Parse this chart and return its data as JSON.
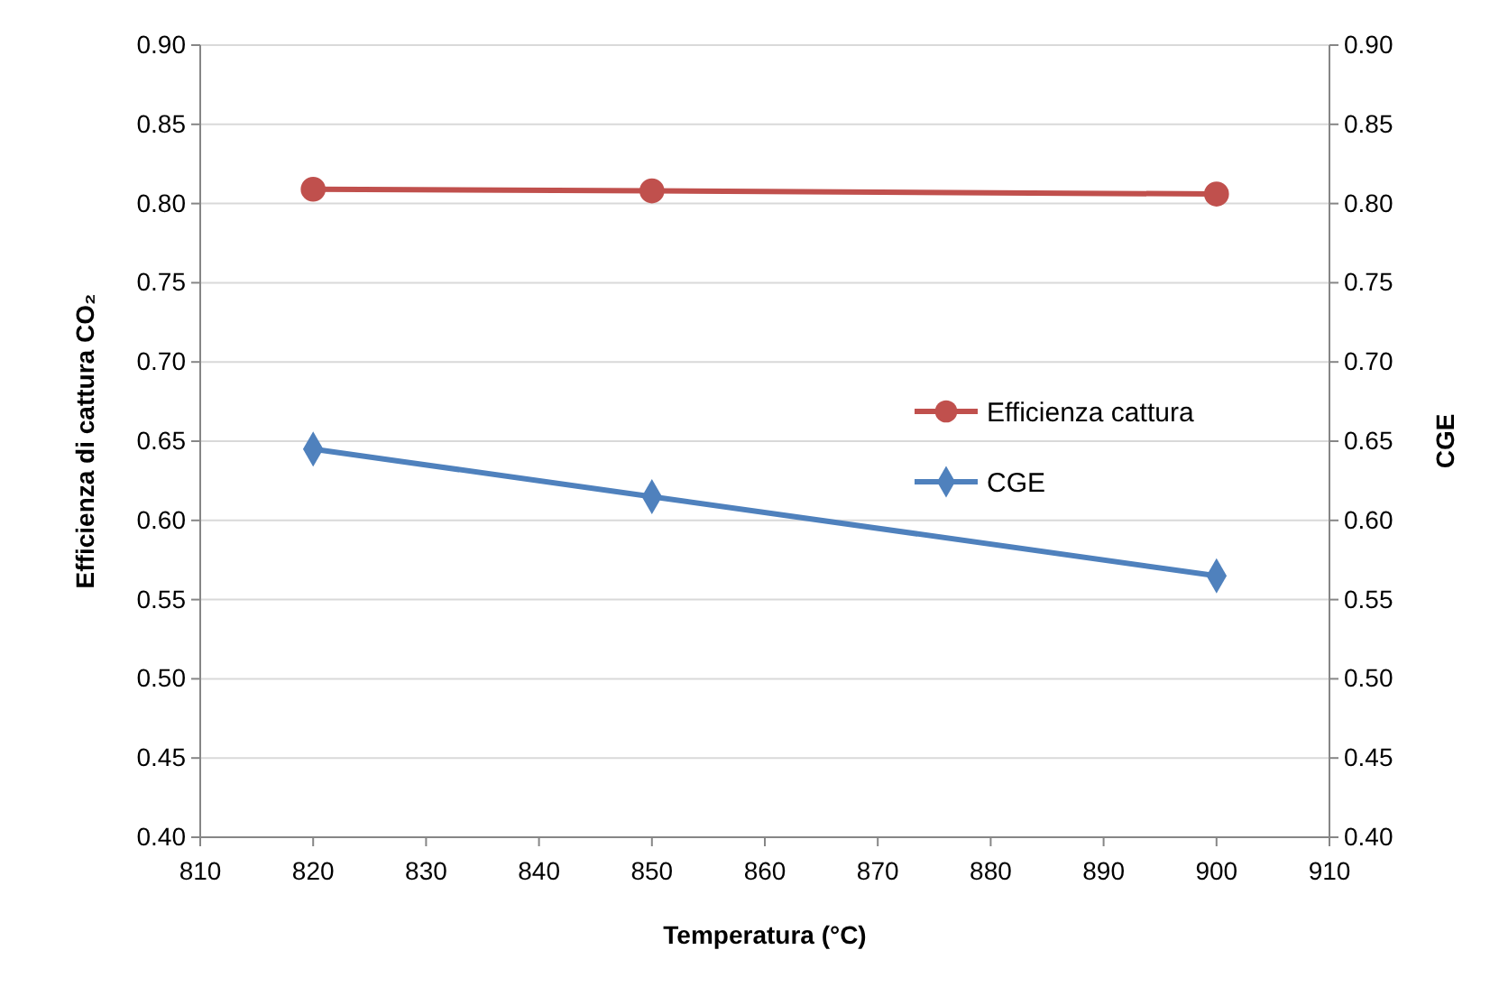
{
  "chart_data": {
    "type": "line",
    "xlabel": "Temperatura (°C)",
    "ylabel": "Efficienza di cattura CO₂",
    "y2label": "CGE",
    "x": [
      820,
      850,
      900
    ],
    "series": [
      {
        "name": "Efficienza cattura",
        "color": "#c0504d",
        "values": [
          0.809,
          0.808,
          0.806
        ],
        "marker": "circle"
      },
      {
        "name": "CGE",
        "color": "#4f81bd",
        "values": [
          0.645,
          0.615,
          0.565
        ],
        "marker": "diamond",
        "axis": "y2"
      }
    ],
    "xlim": [
      810,
      910
    ],
    "xticks": [
      810,
      820,
      830,
      840,
      850,
      860,
      870,
      880,
      890,
      900,
      910
    ],
    "ylim": [
      0.4,
      0.9
    ],
    "yticks": [
      {
        "value": 0.4,
        "label": "0.40"
      },
      {
        "value": 0.45,
        "label": "0.45"
      },
      {
        "value": 0.5,
        "label": "0.50"
      },
      {
        "value": 0.55,
        "label": "0.55"
      },
      {
        "value": 0.6,
        "label": "0.60"
      },
      {
        "value": 0.65,
        "label": "0.65"
      },
      {
        "value": 0.7,
        "label": "0.70"
      },
      {
        "value": 0.75,
        "label": "0.75"
      },
      {
        "value": 0.8,
        "label": "0.80"
      },
      {
        "value": 0.85,
        "label": "0.85"
      },
      {
        "value": 0.9,
        "label": "0.90"
      }
    ],
    "y2lim": [
      0.4,
      0.9
    ],
    "y2ticks": [
      {
        "value": 0.4,
        "label": "0.40"
      },
      {
        "value": 0.45,
        "label": "0.45"
      },
      {
        "value": 0.5,
        "label": "0.50"
      },
      {
        "value": 0.55,
        "label": "0.55"
      },
      {
        "value": 0.6,
        "label": "0.60"
      },
      {
        "value": 0.65,
        "label": "0.65"
      },
      {
        "value": 0.7,
        "label": "0.70"
      },
      {
        "value": 0.75,
        "label": "0.75"
      },
      {
        "value": 0.8,
        "label": "0.80"
      },
      {
        "value": 0.85,
        "label": "0.85"
      },
      {
        "value": 0.9,
        "label": "0.90"
      }
    ],
    "grid": "y",
    "legend": "right",
    "line_style": "solid"
  }
}
